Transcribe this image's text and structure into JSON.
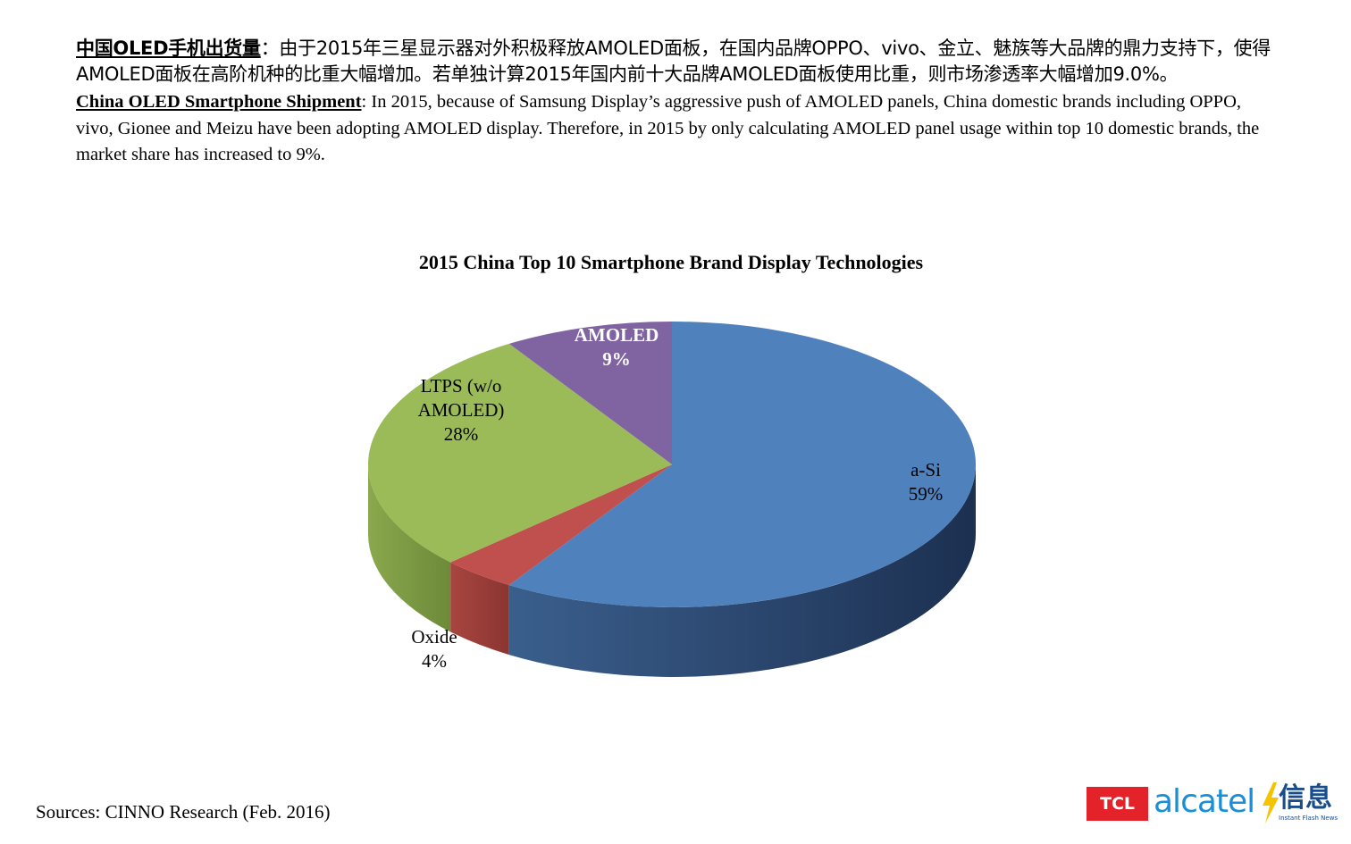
{
  "intro": {
    "cn_heading": "中国OLED手机出货量",
    "cn_body": "：由于2015年三星显示器对外积极释放AMOLED面板，在国内品牌OPPO、vivo、金立、魅族等大品牌的鼎力支持下，使得AMOLED面板在高阶机种的比重大幅增加。若单独计算2015年国内前十大品牌AMOLED面板使用比重，则市场渗透率大幅增加9.0%。",
    "en_heading": "China OLED Smartphone Shipment",
    "en_body": ": In 2015, because of Samsung Display’s aggressive push of AMOLED panels, China domestic brands including OPPO, vivo, Gionee and Meizu have been adopting AMOLED display. Therefore, in 2015 by only calculating AMOLED panel usage within top 10 domestic brands, the market share has increased to 9%."
  },
  "chart_data": {
    "type": "pie",
    "style": "3d",
    "title": "2015 China Top 10 Smartphone Brand Display Technologies",
    "unit": "%",
    "slices": [
      {
        "label": "a-Si",
        "value": 59,
        "value_label": "59%",
        "color": "#4f81bd",
        "label_bold": false
      },
      {
        "label": "Oxide",
        "value": 4,
        "value_label": "4%",
        "color": "#c0504d",
        "label_bold": false
      },
      {
        "label": "LTPS (w/o AMOLED)",
        "value": 28,
        "value_label": "28%",
        "color": "#9bbb59",
        "label_bold": false
      },
      {
        "label": "AMOLED",
        "value": 9,
        "value_label": "9%",
        "color": "#8064a2",
        "label_bold": true
      }
    ]
  },
  "footer": {
    "sources": "Sources: CINNO Research (Feb. 2016)"
  },
  "logo": {
    "tcl": "TCL",
    "alcatel": "alcatel",
    "xinxi": "信息",
    "xinxi_sub": "Instant Flash News",
    "bolt_color": "#f5c400"
  }
}
